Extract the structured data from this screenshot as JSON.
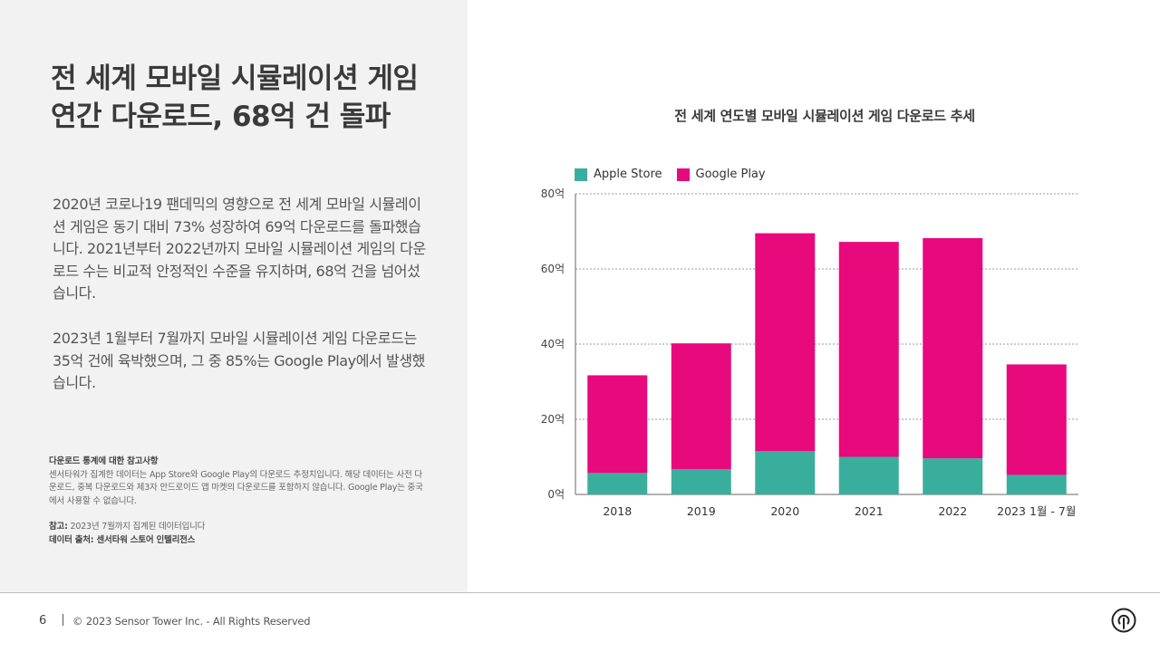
{
  "title": {
    "line1": "전 세계 모바일 시뮬레이션 게임",
    "line2": "연간 다운로드, 68억 건 돌파"
  },
  "paragraphs": {
    "p1": "2020년 코로나19 팬데믹의 영향으로 전 세계 모바일 시뮬레이션 게임은 동기 대비 73% 성장하여 69억 다운로드를 돌파했습니다. 2021년부터 2022년까지 모바일 시뮬레이션 게임의 다운로드 수는 비교적 안정적인 수준을 유지하며, 68억 건을 넘어섰습니다.",
    "p2": "2023년 1월부터 7월까지 모바일 시뮬레이션 게임 다운로드는 35억 건에 육박했으며, 그 중 85%는 Google Play에서 발생했습니다."
  },
  "notes": {
    "heading": "다운로드 통계에 대한 참고사항",
    "text": "센서타워가 집계한 데이터는 App Store와 Google Play의 다운로드 추정치입니다. 해당 데이터는 사전 다운로드, 중복 다운로드와 제3자 안드로이드 앱 마켓의 다운로드를 포함하지 않습니다. Google Play는 중국에서 사용할 수 없습니다.",
    "ref_label": "참고:",
    "ref_text": "2023년 7월까지 집계된 데이터입니다",
    "source": "데이터 출처: 센서타워 스토어 인텔리전스"
  },
  "footer": {
    "page_number": "6",
    "copyright": "© 2023 Sensor Tower Inc. - All Rights Reserved"
  },
  "colors": {
    "apple_store": "#3aae9c",
    "google_play": "#e8097d",
    "left_panel_bg": "#f2f2f2"
  },
  "chart_data": {
    "type": "bar",
    "stacked": true,
    "title": "전 세계 연도별 모바일 시뮬레이션 게임 다운로드 추세",
    "categories": [
      "2018",
      "2019",
      "2020",
      "2021",
      "2022",
      "2023 1월 - 7월"
    ],
    "series": [
      {
        "name": "Apple Store",
        "color": "#3aae9c",
        "values": [
          5.7,
          6.7,
          11.5,
          10.0,
          9.6,
          5.2
        ]
      },
      {
        "name": "Google Play",
        "color": "#e8097d",
        "values": [
          26.0,
          33.5,
          58.0,
          57.2,
          58.6,
          29.4
        ]
      }
    ],
    "y_ticks": [
      "0억",
      "20억",
      "40억",
      "60억",
      "80억"
    ],
    "ylim": [
      0,
      80
    ],
    "grid": true,
    "legend_position": "top-left"
  }
}
